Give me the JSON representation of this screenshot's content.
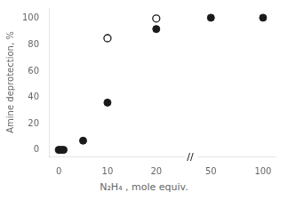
{
  "chart_data": [
    {
      "type": "scatter",
      "ylabel": "Amine deprotection, %",
      "xlabel": "N₂H₄ , mole equiv.",
      "annotations": [
        "//"
      ],
      "xlim": [
        -2,
        26
      ],
      "xticks": [
        0,
        10,
        20
      ],
      "ylim": [
        -5,
        108
      ],
      "yticks": [
        0,
        20,
        40,
        60,
        80,
        100
      ],
      "grid": false,
      "series": [
        {
          "marker": "circle",
          "color": "#1a1a1a",
          "x": [
            0,
            0.5,
            1,
            5,
            10,
            20
          ],
          "values": [
            0,
            0,
            0,
            7,
            36,
            92
          ]
        },
        {
          "marker": "open circle",
          "color": "#1a1a1a",
          "x": [
            10,
            20
          ],
          "values": [
            85,
            100
          ]
        }
      ]
    },
    {
      "type": "scatter",
      "xlim": [
        37,
        112
      ],
      "xticks": [
        50,
        100
      ],
      "ylim": [
        -5,
        108
      ],
      "grid": false,
      "tick_labels": "x",
      "series": [
        {
          "marker": "circle",
          "color": "#1a1a1a",
          "x": [
            50,
            100
          ],
          "values": [
            100,
            100
          ]
        }
      ]
    }
  ]
}
